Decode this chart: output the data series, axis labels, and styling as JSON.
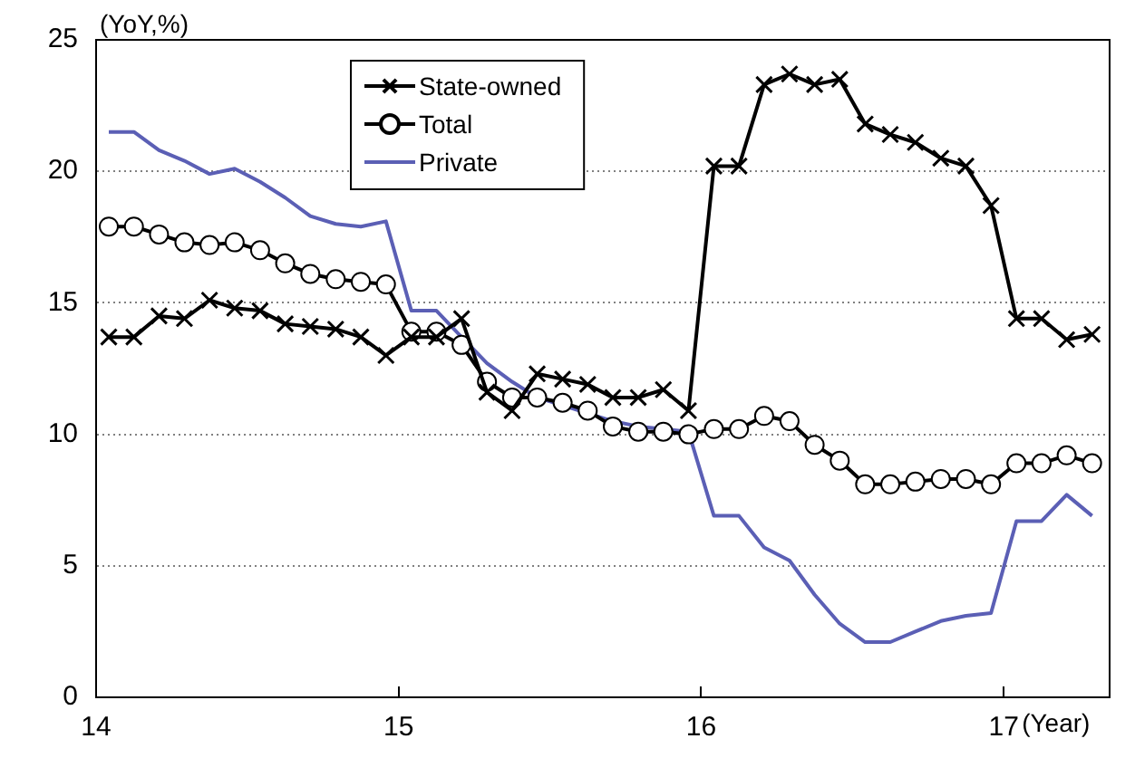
{
  "chart_data": {
    "type": "line",
    "ylabel": "(YoY,%)",
    "xlabel": "(Year)",
    "x": [
      14.042,
      14.125,
      14.208,
      14.292,
      14.375,
      14.458,
      14.542,
      14.625,
      14.708,
      14.792,
      14.875,
      14.958,
      15.042,
      15.125,
      15.208,
      15.292,
      15.375,
      15.458,
      15.542,
      15.625,
      15.708,
      15.792,
      15.875,
      15.958,
      16.042,
      16.125,
      16.208,
      16.292,
      16.375,
      16.458,
      16.542,
      16.625,
      16.708,
      16.792,
      16.875,
      16.958,
      17.042,
      17.125,
      17.208,
      17.292
    ],
    "series": [
      {
        "name": "State-owned",
        "color": "#000000",
        "marker": "cross",
        "values": [
          13.7,
          13.7,
          14.5,
          14.4,
          15.1,
          14.8,
          14.7,
          14.2,
          14.1,
          14.0,
          13.7,
          13.0,
          13.7,
          13.7,
          14.4,
          11.6,
          10.9,
          12.3,
          12.1,
          11.9,
          11.4,
          11.4,
          11.7,
          10.9,
          20.2,
          20.2,
          23.3,
          23.7,
          23.3,
          23.5,
          21.8,
          21.4,
          21.1,
          20.5,
          20.2,
          18.7,
          14.4,
          14.4,
          13.6,
          13.8
        ]
      },
      {
        "name": "Total",
        "color": "#000000",
        "marker": "circle",
        "values": [
          17.9,
          17.9,
          17.6,
          17.3,
          17.2,
          17.3,
          17.0,
          16.5,
          16.1,
          15.9,
          15.8,
          15.7,
          13.9,
          13.9,
          13.4,
          12.0,
          11.4,
          11.4,
          11.2,
          10.9,
          10.3,
          10.1,
          10.1,
          10.0,
          10.2,
          10.2,
          10.7,
          10.5,
          9.6,
          9.0,
          8.1,
          8.1,
          8.2,
          8.3,
          8.3,
          8.1,
          8.9,
          8.9,
          9.2,
          8.9
        ]
      },
      {
        "name": "Private",
        "color": "#5b5fb5",
        "marker": "none",
        "values": [
          21.5,
          21.5,
          20.8,
          20.4,
          19.9,
          20.1,
          19.6,
          19.0,
          18.3,
          18.0,
          17.9,
          18.1,
          14.7,
          14.7,
          13.7,
          12.7,
          12.0,
          11.4,
          11.1,
          10.8,
          10.5,
          10.3,
          10.2,
          10.1,
          6.9,
          6.9,
          5.7,
          5.2,
          3.9,
          2.8,
          2.1,
          2.1,
          2.5,
          2.9,
          3.1,
          3.2,
          6.7,
          6.7,
          7.7,
          6.9
        ]
      }
    ],
    "xlim": [
      14,
      17.35
    ],
    "xticks": [
      14,
      15,
      16,
      17
    ],
    "ylim": [
      0,
      25
    ],
    "yticks": [
      0,
      5,
      10,
      15,
      20,
      25
    ],
    "grid": "y",
    "legend": "top left",
    "line_style": "solid"
  }
}
